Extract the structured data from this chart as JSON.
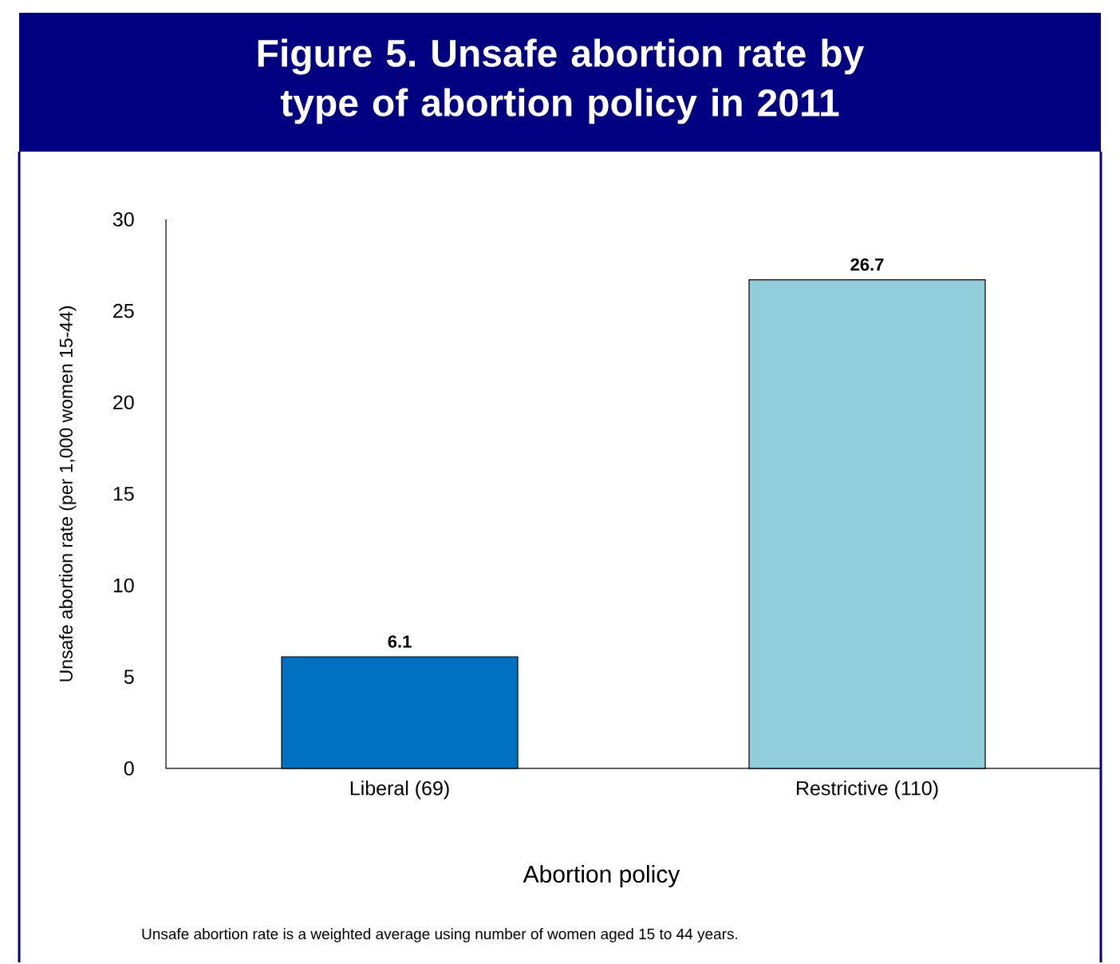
{
  "chart_data": {
    "type": "bar",
    "title": "Figure 5. Unsafe abortion rate by type of abortion policy in 2011",
    "xlabel": "Abortion policy",
    "ylabel": "Unsafe abortion rate (per 1,000 women 15-44)",
    "categories": [
      "Liberal (69)",
      "Restrictive (110)"
    ],
    "values": [
      6.1,
      26.7
    ],
    "colors": [
      "#0070c0",
      "#92cddc"
    ],
    "ylim": [
      0,
      30
    ],
    "yticks": [
      0,
      5,
      10,
      15,
      20,
      25,
      30
    ],
    "data_labels": true,
    "annotations": [
      "Unsafe abortion rate is a weighted average using number of women aged 15 to 44 years."
    ]
  }
}
